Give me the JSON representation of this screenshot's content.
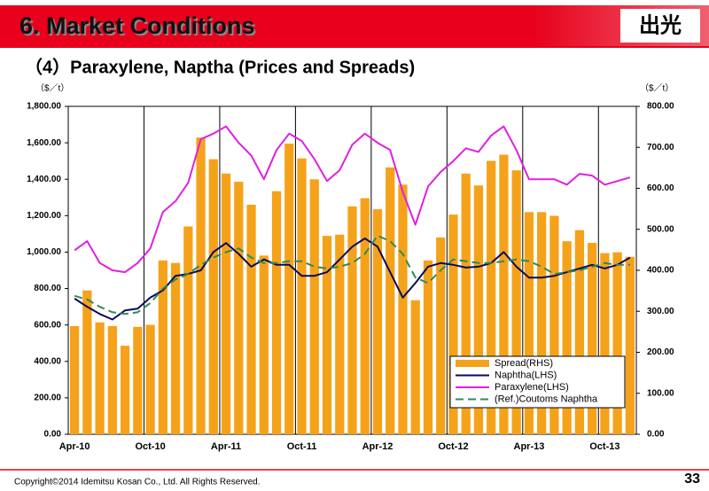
{
  "header": {
    "title": "6. Market Conditions",
    "logo": "出光"
  },
  "chart_data": {
    "type": "combo",
    "title": "（4）Paraxylene, Naptha (Prices and Spreads)",
    "y_unit": "（$／t）",
    "y2_unit": "（$／t）",
    "categories": [
      "Apr-10",
      null,
      null,
      null,
      null,
      null,
      "Oct-10",
      null,
      null,
      null,
      null,
      null,
      "Apr-11",
      null,
      null,
      null,
      null,
      null,
      "Oct-11",
      null,
      null,
      null,
      null,
      null,
      "Apr-12",
      null,
      null,
      null,
      null,
      null,
      "Oct-12",
      null,
      null,
      null,
      null,
      null,
      "Apr-13",
      null,
      null,
      null,
      null,
      null,
      "Oct-13",
      null,
      null
    ],
    "ylim": [
      0,
      1800
    ],
    "yticks": [
      {
        "value": 0,
        "label": "0.00"
      },
      {
        "value": 200,
        "label": "200.00"
      },
      {
        "value": 400,
        "label": "400.00"
      },
      {
        "value": 600,
        "label": "600.00"
      },
      {
        "value": 800,
        "label": "800.00"
      },
      {
        "value": 1000,
        "label": "1,000.00"
      },
      {
        "value": 1200,
        "label": "1,200.00"
      },
      {
        "value": 1400,
        "label": "1,400.00"
      },
      {
        "value": 1600,
        "label": "1,600.00"
      },
      {
        "value": 1800,
        "label": "1,800.00"
      }
    ],
    "y2lim": [
      0,
      800
    ],
    "y2ticks": [
      {
        "value": 0,
        "label": "0.00"
      },
      {
        "value": 100,
        "label": "100.00"
      },
      {
        "value": 200,
        "label": "200.00"
      },
      {
        "value": 300,
        "label": "300.00"
      },
      {
        "value": 400,
        "label": "400.00"
      },
      {
        "value": 500,
        "label": "500.00"
      },
      {
        "value": 600,
        "label": "600.00"
      },
      {
        "value": 700,
        "label": "700.00"
      },
      {
        "value": 800,
        "label": "800.00"
      }
    ],
    "legend": "lower right",
    "series": [
      {
        "name": "Spread(RHS)",
        "type": "bar",
        "axis": "y2",
        "color": "#f5a21b",
        "values": [
          264,
          351,
          273,
          264,
          216,
          262,
          267,
          424,
          418,
          507,
          724,
          671,
          636,
          616,
          560,
          436,
          593,
          709,
          673,
          622,
          484,
          487,
          556,
          576,
          549,
          651,
          609,
          327,
          424,
          480,
          536,
          636,
          607,
          667,
          682,
          644,
          542,
          542,
          533,
          471,
          498,
          467,
          442,
          444,
          433
        ]
      },
      {
        "name": "Naphtha(LHS)",
        "type": "line",
        "axis": "y",
        "color": "#0a0a5a",
        "dash": false,
        "values": [
          745,
          700,
          660,
          630,
          680,
          690,
          750,
          790,
          870,
          880,
          900,
          1000,
          1050,
          990,
          920,
          960,
          930,
          930,
          870,
          870,
          890,
          960,
          1030,
          1075,
          1030,
          890,
          750,
          830,
          920,
          940,
          930,
          915,
          920,
          940,
          1000,
          920,
          860,
          860,
          870,
          890,
          910,
          930,
          910,
          930,
          970
        ]
      },
      {
        "name": "Paraxylene(LHS)",
        "type": "line",
        "axis": "y",
        "color": "#e020e0",
        "dash": false,
        "values": [
          1010,
          1060,
          940,
          900,
          890,
          940,
          1020,
          1220,
          1280,
          1380,
          1620,
          1650,
          1690,
          1600,
          1530,
          1400,
          1560,
          1650,
          1610,
          1510,
          1390,
          1450,
          1590,
          1650,
          1600,
          1560,
          1330,
          1150,
          1360,
          1440,
          1500,
          1570,
          1550,
          1640,
          1690,
          1560,
          1400,
          1400,
          1400,
          1370,
          1430,
          1420,
          1370,
          1390,
          1410
        ]
      },
      {
        "name": "(Ref.)Coutoms Naphtha",
        "type": "line",
        "axis": "y",
        "color": "#2e8b57",
        "dash": true,
        "values": [
          760,
          740,
          700,
          670,
          660,
          670,
          720,
          800,
          850,
          880,
          930,
          970,
          1000,
          1020,
          970,
          940,
          940,
          950,
          950,
          920,
          910,
          920,
          940,
          990,
          1090,
          1060,
          990,
          860,
          830,
          900,
          960,
          950,
          940,
          940,
          950,
          960,
          950,
          920,
          880,
          890,
          900,
          920,
          940,
          930,
          930
        ]
      }
    ]
  },
  "footer": {
    "copyright": "Copyright©2014 Idemitsu Kosan Co., Ltd. All Rights Reserved.",
    "page": "33"
  }
}
